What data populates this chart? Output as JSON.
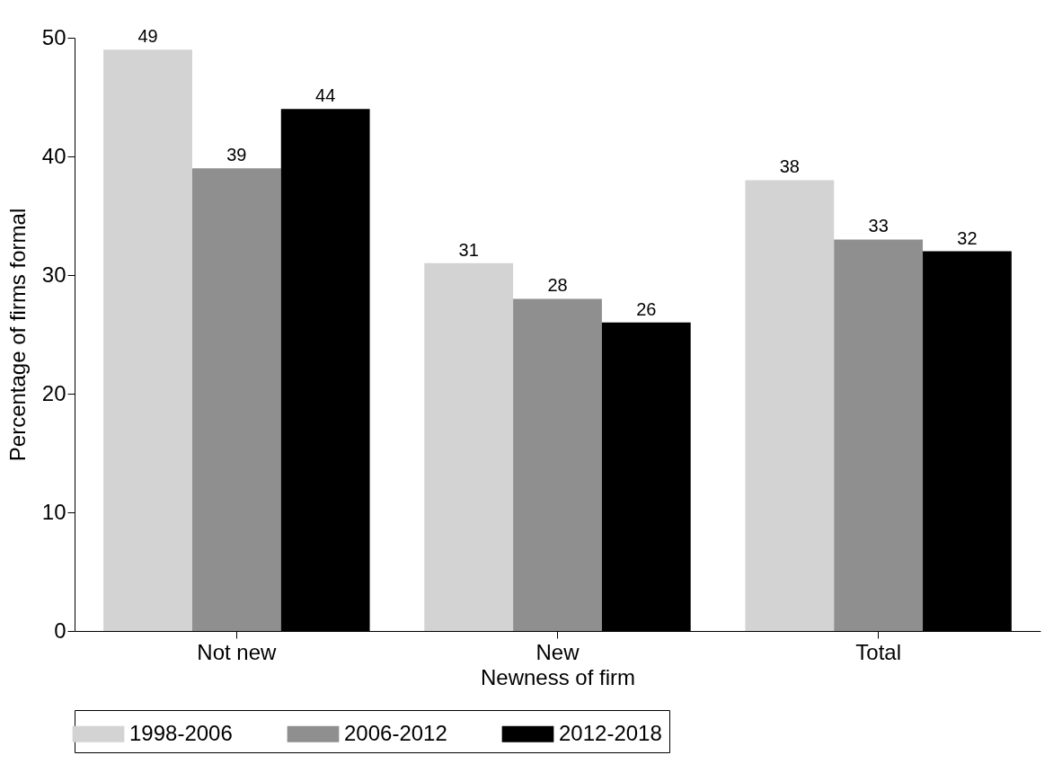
{
  "chart_data": {
    "type": "bar",
    "categories": [
      "Not new",
      "New",
      "Total"
    ],
    "xlabel": "Newness of firm",
    "ylabel": "Percentage of firms formal",
    "series": [
      {
        "name": "1998-2006",
        "color": "#d3d3d3",
        "values": [
          49,
          31,
          38
        ]
      },
      {
        "name": "2006-2012",
        "color": "#8f8f8f",
        "values": [
          39,
          28,
          33
        ]
      },
      {
        "name": "2012-2018",
        "color": "#000000",
        "values": [
          44,
          26,
          32
        ]
      }
    ],
    "ylim": [
      0,
      50
    ],
    "yticks": [
      0,
      10,
      20,
      30,
      40,
      50
    ],
    "data_labels": true,
    "legend": "bottom",
    "grid": false
  }
}
